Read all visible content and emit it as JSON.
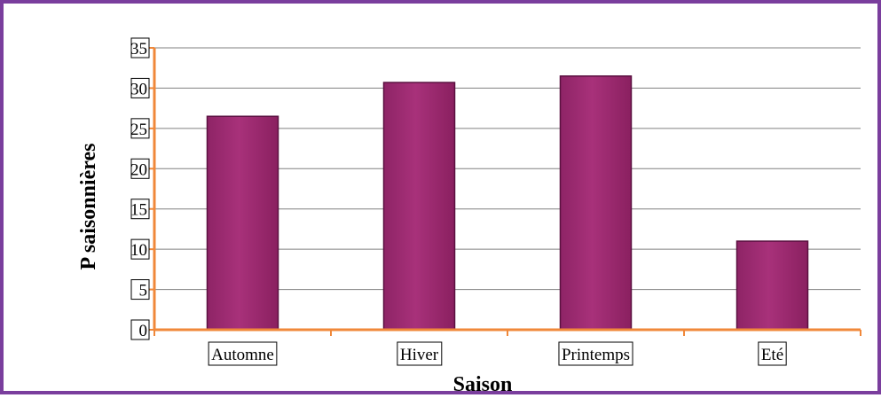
{
  "colors": {
    "frame": "#7a3e9d",
    "bar": "#a8317a",
    "bar_edge": "#5a1040",
    "axis": "#f0883a",
    "grid": "#808080",
    "label_box": "#000000"
  },
  "chart_data": {
    "type": "bar",
    "categories": [
      "Automne",
      "Hiver",
      "Printemps",
      "Eté"
    ],
    "values": [
      26.5,
      30.7,
      31.5,
      11.0
    ],
    "title": "",
    "xlabel": "Saison",
    "ylabel": "P saisonnières",
    "ylim": [
      0,
      35
    ],
    "yticks": [
      0,
      5,
      10,
      15,
      20,
      25,
      30,
      35
    ],
    "grid": true,
    "legend": "none"
  }
}
